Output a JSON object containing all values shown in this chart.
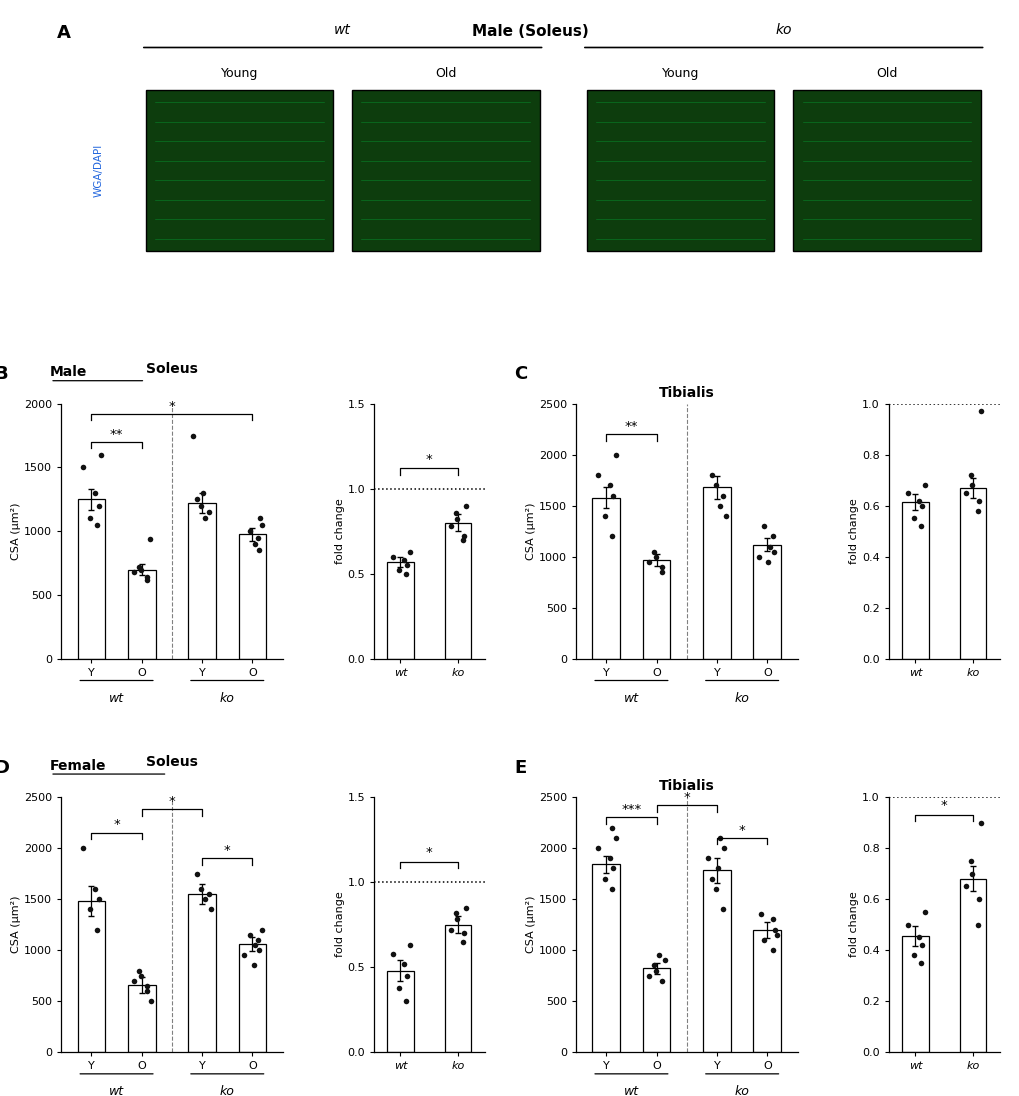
{
  "panel_A": {
    "title": "Male (Soleus)",
    "wt_label": "wt",
    "ko_label": "ko",
    "col_labels": [
      "Young",
      "Old",
      "Young",
      "Old"
    ],
    "side_label": "WGA/DAPI"
  },
  "panel_B": {
    "label": "B",
    "sex_label": "Male",
    "title": "Soleus",
    "bar_means": [
      1250,
      700,
      1220,
      975
    ],
    "bar_errors": [
      80,
      40,
      80,
      50
    ],
    "x_labels": [
      "Y",
      "O",
      "Y",
      "O"
    ],
    "group_labels": [
      "wt",
      "ko"
    ],
    "ylim": [
      0,
      2000
    ],
    "yticks": [
      0,
      500,
      1000,
      1500,
      2000
    ],
    "ylabel": "CSA (µm²)",
    "dots_wt_y": [
      1050,
      1100,
      1200,
      1300,
      1500,
      1600
    ],
    "dots_wt_o": [
      620,
      640,
      680,
      700,
      720,
      940
    ],
    "dots_ko_y": [
      1100,
      1150,
      1200,
      1250,
      1300,
      1750
    ],
    "dots_ko_o": [
      850,
      900,
      950,
      1000,
      1050,
      1100
    ],
    "sig_brackets_csa": [
      [
        0,
        1,
        1700,
        "**"
      ],
      [
        0,
        3,
        1920,
        "*"
      ]
    ],
    "fold_means": [
      0.57,
      0.8
    ],
    "fold_errors": [
      0.03,
      0.05
    ],
    "fold_dots_wt": [
      0.5,
      0.52,
      0.55,
      0.58,
      0.6,
      0.63
    ],
    "fold_dots_ko": [
      0.7,
      0.72,
      0.78,
      0.82,
      0.86,
      0.9
    ],
    "fold_ylim": [
      0,
      1.5
    ],
    "fold_yticks": [
      0,
      0.5,
      1.0,
      1.5
    ],
    "fold_sig_brackets": [
      [
        0,
        1,
        1.12,
        "*"
      ]
    ]
  },
  "panel_C": {
    "label": "C",
    "title": "Tibialis",
    "bar_means": [
      1580,
      970,
      1680,
      1120
    ],
    "bar_errors": [
      100,
      60,
      110,
      65
    ],
    "x_labels": [
      "Y",
      "O",
      "Y",
      "O"
    ],
    "group_labels": [
      "wt",
      "ko"
    ],
    "ylim": [
      0,
      2500
    ],
    "yticks": [
      0,
      500,
      1000,
      1500,
      2000,
      2500
    ],
    "ylabel": "CSA (µm²)",
    "dots_wt_y": [
      1200,
      1400,
      1600,
      1700,
      1800,
      2000
    ],
    "dots_wt_o": [
      850,
      900,
      950,
      1000,
      1050
    ],
    "dots_ko_y": [
      1400,
      1500,
      1600,
      1700,
      1800
    ],
    "dots_ko_o": [
      950,
      1000,
      1050,
      1100,
      1200,
      1300
    ],
    "sig_brackets_csa": [
      [
        0,
        1,
        2200,
        "**"
      ]
    ],
    "fold_means": [
      0.615,
      0.67
    ],
    "fold_errors": [
      0.03,
      0.04
    ],
    "fold_dots_wt": [
      0.52,
      0.55,
      0.6,
      0.62,
      0.65,
      0.68
    ],
    "fold_dots_ko": [
      0.58,
      0.62,
      0.65,
      0.68,
      0.72,
      0.97
    ],
    "fold_ylim": [
      0,
      1.0
    ],
    "fold_yticks": [
      0,
      0.2,
      0.4,
      0.6,
      0.8,
      1.0
    ],
    "fold_sig_brackets": []
  },
  "panel_D": {
    "label": "D",
    "sex_label": "Female",
    "title": "Soleus",
    "bar_means": [
      1480,
      660,
      1550,
      1060
    ],
    "bar_errors": [
      150,
      80,
      100,
      70
    ],
    "x_labels": [
      "Y",
      "O",
      "Y",
      "O"
    ],
    "group_labels": [
      "wt",
      "ko"
    ],
    "ylim": [
      0,
      2500
    ],
    "yticks": [
      0,
      500,
      1000,
      1500,
      2000,
      2500
    ],
    "ylabel": "CSA (µm²)",
    "dots_wt_y": [
      1200,
      1400,
      1500,
      1600,
      2000
    ],
    "dots_wt_o": [
      500,
      600,
      650,
      700,
      750,
      800
    ],
    "dots_ko_y": [
      1400,
      1500,
      1550,
      1600,
      1750
    ],
    "dots_ko_o": [
      850,
      950,
      1000,
      1050,
      1100,
      1150,
      1200
    ],
    "sig_brackets_csa": [
      [
        0,
        1,
        2150,
        "*"
      ],
      [
        2,
        3,
        1900,
        "*"
      ],
      [
        1,
        2,
        2380,
        "*"
      ]
    ],
    "fold_means": [
      0.48,
      0.75
    ],
    "fold_errors": [
      0.06,
      0.05
    ],
    "fold_dots_wt": [
      0.3,
      0.38,
      0.45,
      0.52,
      0.58,
      0.63
    ],
    "fold_dots_ko": [
      0.65,
      0.7,
      0.72,
      0.78,
      0.82,
      0.85
    ],
    "fold_ylim": [
      0,
      1.5
    ],
    "fold_yticks": [
      0,
      0.5,
      1.0,
      1.5
    ],
    "fold_sig_brackets": [
      [
        0,
        1,
        1.12,
        "*"
      ]
    ]
  },
  "panel_E": {
    "label": "E",
    "title": "Tibialis",
    "bar_means": [
      1840,
      820,
      1780,
      1200
    ],
    "bar_errors": [
      80,
      50,
      120,
      80
    ],
    "x_labels": [
      "Y",
      "O",
      "Y",
      "O"
    ],
    "group_labels": [
      "wt",
      "ko"
    ],
    "ylim": [
      0,
      2500
    ],
    "yticks": [
      0,
      500,
      1000,
      1500,
      2000,
      2500
    ],
    "ylabel": "CSA (µm²)",
    "dots_wt_y": [
      1600,
      1700,
      1800,
      1900,
      2000,
      2100,
      2200
    ],
    "dots_wt_o": [
      700,
      750,
      800,
      850,
      900,
      950
    ],
    "dots_ko_y": [
      1400,
      1600,
      1700,
      1800,
      1900,
      2000,
      2100
    ],
    "dots_ko_o": [
      1000,
      1100,
      1150,
      1200,
      1300,
      1350
    ],
    "sig_brackets_csa": [
      [
        0,
        1,
        2300,
        "***"
      ],
      [
        2,
        3,
        2100,
        "*"
      ],
      [
        1,
        2,
        2420,
        "*"
      ]
    ],
    "fold_means": [
      0.455,
      0.68
    ],
    "fold_errors": [
      0.04,
      0.05
    ],
    "fold_dots_wt": [
      0.35,
      0.38,
      0.42,
      0.45,
      0.5,
      0.55
    ],
    "fold_dots_ko": [
      0.5,
      0.6,
      0.65,
      0.7,
      0.75,
      0.9
    ],
    "fold_ylim": [
      0,
      1.0
    ],
    "fold_yticks": [
      0,
      0.2,
      0.4,
      0.6,
      0.8,
      1.0
    ],
    "fold_sig_brackets": [
      [
        0,
        1,
        0.93,
        "*"
      ]
    ]
  },
  "bar_color": "#ffffff",
  "bar_edgecolor": "#000000",
  "dot_color": "#111111",
  "bar_width": 0.55
}
